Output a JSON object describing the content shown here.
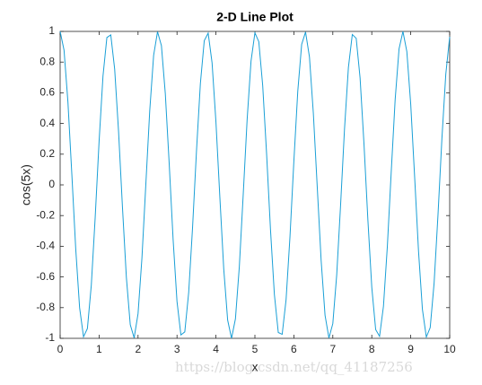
{
  "chart_data": {
    "type": "line",
    "title": "2-D Line Plot",
    "xlabel": "x",
    "ylabel": "cos(5x)",
    "watermark": "https://blog.csdn.net/qq_41187256",
    "color": "#1a9fd6",
    "x": [
      0,
      0.1,
      0.2,
      0.3,
      0.4,
      0.5,
      0.6,
      0.7,
      0.8,
      0.9,
      1,
      1.1,
      1.2,
      1.3,
      1.4,
      1.5,
      1.6,
      1.7,
      1.8,
      1.9,
      2,
      2.1,
      2.2,
      2.3,
      2.4,
      2.5,
      2.6,
      2.7,
      2.8,
      2.9,
      3,
      3.1,
      3.2,
      3.3,
      3.4,
      3.5,
      3.6,
      3.7,
      3.8,
      3.9,
      4,
      4.1,
      4.2,
      4.3,
      4.4,
      4.5,
      4.6,
      4.7,
      4.8,
      4.9,
      5,
      5.1,
      5.2,
      5.3,
      5.4,
      5.5,
      5.6,
      5.7,
      5.8,
      5.9,
      6,
      6.1,
      6.2,
      6.3,
      6.4,
      6.5,
      6.6,
      6.7,
      6.8,
      6.9,
      7,
      7.1,
      7.2,
      7.3,
      7.4,
      7.5,
      7.6,
      7.7,
      7.8,
      7.9,
      8,
      8.1,
      8.2,
      8.3,
      8.4,
      8.5,
      8.6,
      8.7,
      8.8,
      8.9,
      9,
      9.1,
      9.2,
      9.3,
      9.4,
      9.5,
      9.6,
      9.7,
      9.8,
      9.9,
      10
    ],
    "values": [
      1,
      0.878,
      0.54,
      0.071,
      -0.416,
      -0.801,
      -0.99,
      -0.936,
      -0.654,
      -0.211,
      0.284,
      0.709,
      0.96,
      0.977,
      0.754,
      0.347,
      -0.146,
      -0.602,
      -0.911,
      -0.997,
      -0.839,
      -0.476,
      0.004,
      0.483,
      0.844,
      0.998,
      0.907,
      0.594,
      0.137,
      -0.355,
      -0.76,
      -0.978,
      -0.958,
      -0.701,
      -0.275,
      0.22,
      0.66,
      0.94,
      0.989,
      0.796,
      0.408,
      -0.08,
      -0.548,
      -0.881,
      -1.0,
      -0.873,
      -0.533,
      -0.062,
      0.424,
      0.806,
      0.991,
      0.933,
      0.647,
      0.202,
      -0.292,
      -0.715,
      -0.962,
      -0.974,
      -0.748,
      -0.338,
      0.154,
      0.609,
      0.915,
      0.996,
      0.834,
      0.467,
      -0.013,
      -0.492,
      -0.849,
      -0.998,
      -0.904,
      -0.586,
      -0.128,
      0.364,
      0.765,
      0.98,
      0.955,
      0.696,
      0.267,
      -0.228,
      -0.667,
      -0.943,
      -0.987,
      -0.791,
      -0.4,
      0.088,
      0.555,
      0.886,
      1.0,
      0.869,
      0.525,
      0.053,
      -0.432,
      -0.812,
      -0.992,
      -0.93,
      -0.64,
      -0.194,
      0.3,
      0.721,
      0.965
    ],
    "xlim": [
      0,
      10
    ],
    "ylim": [
      -1,
      1
    ],
    "xticks": [
      0,
      1,
      2,
      3,
      4,
      5,
      6,
      7,
      8,
      9,
      10
    ],
    "yticks": [
      -1,
      -0.8,
      -0.6,
      -0.4,
      -0.2,
      0,
      0.2,
      0.4,
      0.6,
      0.8,
      1
    ],
    "grid": false
  }
}
